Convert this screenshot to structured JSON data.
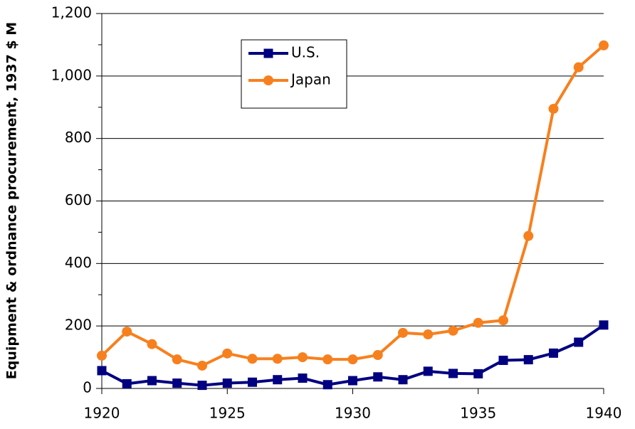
{
  "chart_data": {
    "type": "line",
    "ylabel": "Equipment & ordnance procurement, 1937 $ M",
    "x": [
      1920,
      1921,
      1922,
      1923,
      1924,
      1925,
      1926,
      1927,
      1928,
      1929,
      1930,
      1931,
      1932,
      1933,
      1934,
      1935,
      1936,
      1937,
      1938,
      1939,
      1940
    ],
    "series": [
      {
        "name": "U.S.",
        "color": "#000080",
        "marker": "square",
        "values": [
          57,
          15,
          25,
          17,
          10,
          17,
          20,
          28,
          33,
          12,
          25,
          37,
          28,
          55,
          48,
          47,
          90,
          92,
          113,
          148,
          203
        ]
      },
      {
        "name": "Japan",
        "color": "#f7801e",
        "marker": "circle",
        "values": [
          105,
          182,
          142,
          93,
          73,
          112,
          95,
          95,
          100,
          93,
          93,
          107,
          178,
          173,
          185,
          210,
          218,
          488,
          895,
          1028,
          1098
        ]
      }
    ],
    "xlim": [
      1920,
      1940
    ],
    "xticks": [
      1920,
      1925,
      1930,
      1935,
      1940
    ],
    "ylim": [
      0,
      1200
    ],
    "yticks": [
      0,
      200,
      400,
      600,
      800,
      {
        "value": 1000,
        "label": "1,000"
      },
      {
        "value": 1200,
        "label": "1,200"
      }
    ],
    "yminor": [
      100,
      300,
      500,
      700,
      900,
      1100
    ],
    "grid": true,
    "legend": "upper left"
  }
}
